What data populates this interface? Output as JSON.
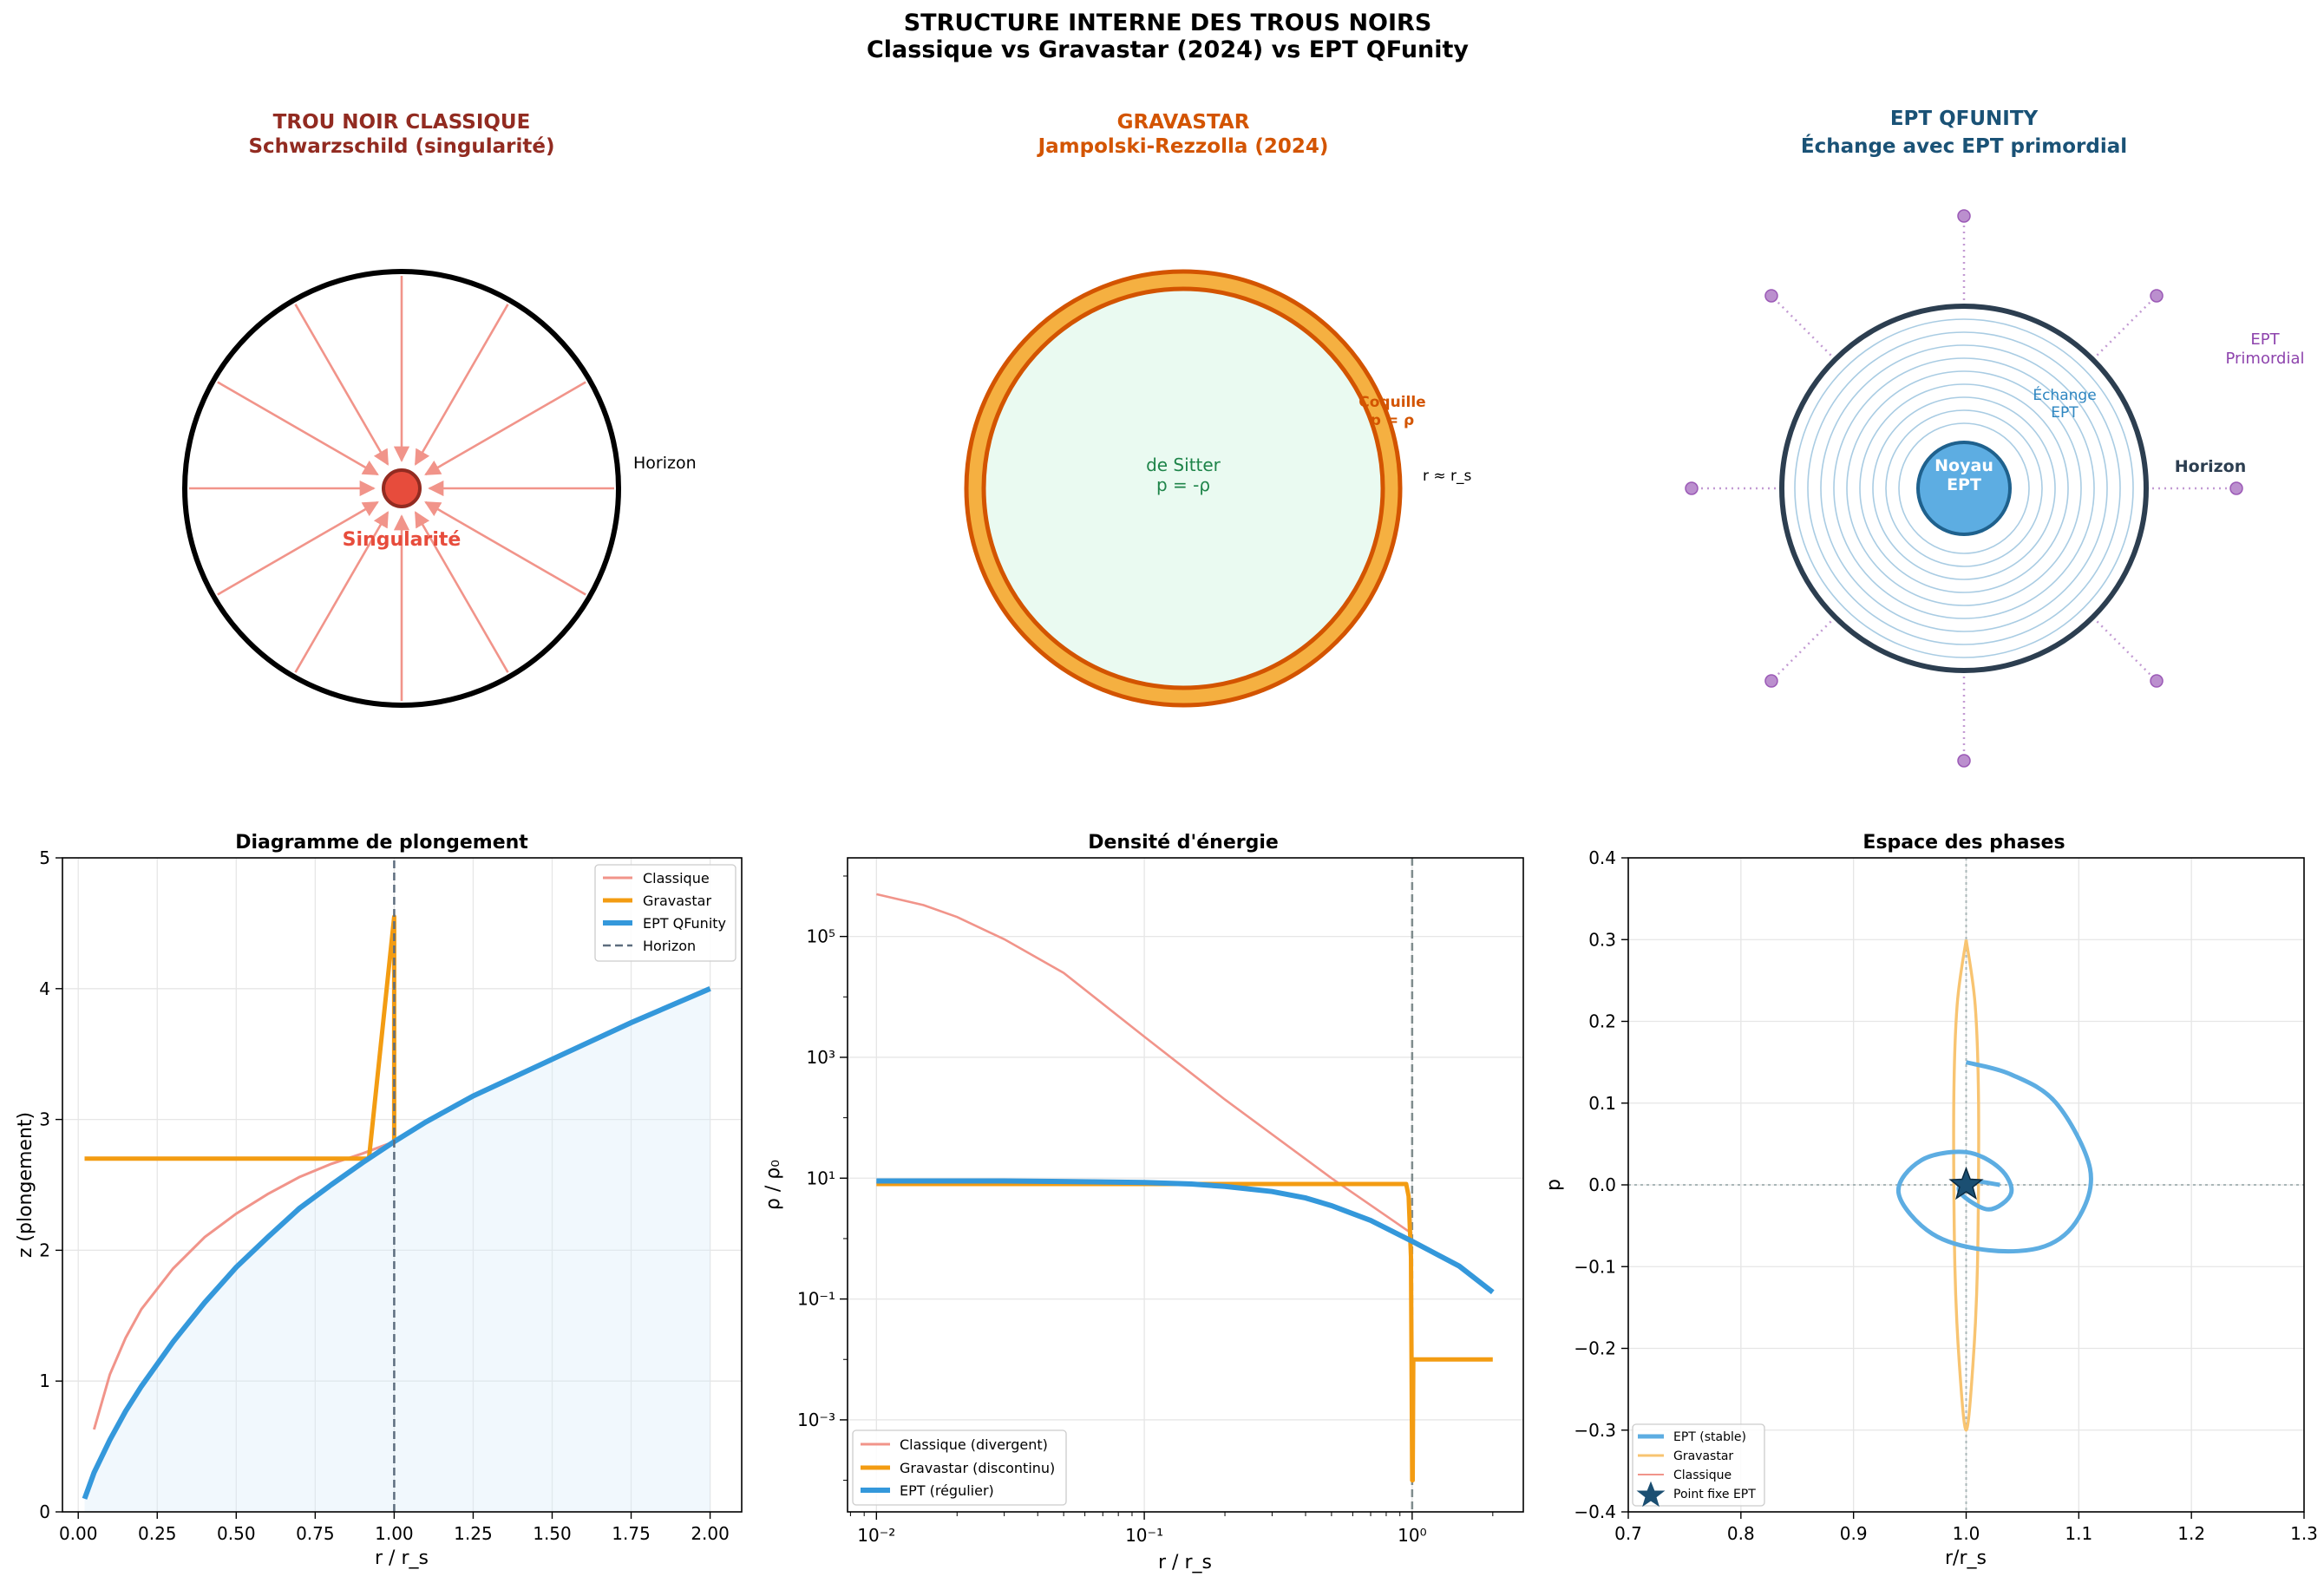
{
  "figure": {
    "title_line1": "STRUCTURE INTERNE DES TROUS NOIRS",
    "title_line2": "Classique vs Gravastar (2024) vs EPT QFunity"
  },
  "panels": {
    "classic": {
      "title_line1": "TROU NOIR CLASSIQUE",
      "title_line2": "Schwarzschild (singularité)",
      "horizon_label": "Horizon",
      "singularity_label": "Singularité",
      "color": "#922b21"
    },
    "gravastar": {
      "title_line1": "GRAVASTAR",
      "title_line2": "Jampolski-Rezzolla (2024)",
      "interior_label_line1": "de Sitter",
      "interior_label_line2": "p = -ρ",
      "shell_label_line1": "Coquille",
      "shell_label_line2": "p = ρ",
      "radius_label": "r ≈ r_s",
      "color": "#d35400"
    },
    "ept": {
      "title_line1": "EPT QFUNITY",
      "title_line2": "Échange avec EPT primordial",
      "core_label_line1": "Noyau",
      "core_label_line2": "EPT",
      "exchange_label_line1": "Échange",
      "exchange_label_line2": "EPT",
      "horizon_label": "Horizon",
      "primordial_label_line1": "EPT",
      "primordial_label_line2": "Primordial",
      "color": "#1a5276"
    }
  },
  "chart_data": [
    {
      "type": "line",
      "title": "Diagramme de plongement",
      "xlabel": "r / r_s",
      "ylabel": "z (plongement)",
      "xlim": [
        -0.05,
        2.1
      ],
      "ylim": [
        0,
        5
      ],
      "xticks": [
        "0.00",
        "0.25",
        "0.50",
        "0.75",
        "1.00",
        "1.25",
        "1.50",
        "1.75",
        "2.00"
      ],
      "yticks": [
        "0",
        "1",
        "2",
        "3",
        "4",
        "5"
      ],
      "grid": true,
      "legend_position": "upper right",
      "series": [
        {
          "name": "Classique",
          "color": "#f1948a",
          "x": [
            0.05,
            0.1,
            0.15,
            0.2,
            0.3,
            0.4,
            0.5,
            0.6,
            0.7,
            0.8,
            0.9,
            1.0
          ],
          "y": [
            0.63,
            1.05,
            1.33,
            1.55,
            1.86,
            2.1,
            2.28,
            2.43,
            2.56,
            2.66,
            2.74,
            2.83
          ]
        },
        {
          "name": "Gravastar",
          "color": "#f39c12",
          "x": [
            0.02,
            0.92,
            1.0,
            1.0,
            1.1,
            1.25,
            1.5,
            1.75,
            2.0
          ],
          "y": [
            2.7,
            2.7,
            4.55,
            2.83,
            2.98,
            3.18,
            3.46,
            3.74,
            4.0
          ]
        },
        {
          "name": "EPT QFunity",
          "color": "#3498db",
          "x": [
            0.02,
            0.05,
            0.1,
            0.15,
            0.2,
            0.3,
            0.4,
            0.5,
            0.6,
            0.7,
            0.8,
            0.9,
            1.0,
            1.1,
            1.25,
            1.5,
            1.75,
            2.0
          ],
          "y": [
            0.1,
            0.3,
            0.55,
            0.77,
            0.96,
            1.3,
            1.6,
            1.87,
            2.1,
            2.32,
            2.5,
            2.67,
            2.83,
            2.98,
            3.18,
            3.46,
            3.74,
            4.0
          ]
        },
        {
          "name": "Horizon",
          "color": "#5d6d7e",
          "x": [
            1.0,
            1.0
          ],
          "y": [
            0,
            5
          ]
        }
      ]
    },
    {
      "type": "line",
      "title": "Densité d'énergie",
      "xlabel": "r / r_s",
      "ylabel": "ρ / ρ₀",
      "xscale": "log",
      "yscale": "log",
      "xlim": [
        0.0078,
        2.6
      ],
      "ylim": [
        3e-05,
        2000000
      ],
      "xticks": [
        0.01,
        0.1,
        1
      ],
      "yticks": [
        0.001,
        0.1,
        10,
        1000,
        100000
      ],
      "xtick_labels": [
        "10⁻²",
        "10⁻¹",
        "10⁰"
      ],
      "ytick_labels": [
        "10⁻³",
        "10⁻¹",
        "10¹",
        "10³",
        "10⁵"
      ],
      "grid": true,
      "legend_position": "lower left",
      "series": [
        {
          "name": "Classique (divergent)",
          "color": "#f1948a",
          "x": [
            0.01,
            0.015,
            0.02,
            0.03,
            0.05,
            0.1,
            0.2,
            0.5,
            1.0
          ],
          "y": [
            500000,
            330000,
            210000,
            90000,
            25000,
            2200,
            200,
            10,
            1.2
          ]
        },
        {
          "name": "Gravastar (discontinu)",
          "color": "#f39c12",
          "x": [
            0.01,
            0.95,
            0.97,
            0.99,
            1.0,
            1.005,
            1.01,
            1.03,
            2.0
          ],
          "y": [
            8,
            8,
            5,
            0.5,
            0.0001,
            0.0001,
            0.01,
            0.01,
            0.01
          ]
        },
        {
          "name": "EPT (régulier)",
          "color": "#3498db",
          "x": [
            0.01,
            0.03,
            0.05,
            0.1,
            0.15,
            0.2,
            0.3,
            0.4,
            0.5,
            0.7,
            1.0,
            1.5,
            2.0
          ],
          "y": [
            9,
            9,
            8.8,
            8.5,
            8,
            7.3,
            6,
            4.7,
            3.5,
            2,
            0.9,
            0.35,
            0.13
          ]
        }
      ]
    },
    {
      "type": "line",
      "title": "Espace des phases",
      "xlabel": "r/r_s",
      "ylabel": "p",
      "xlim": [
        0.7,
        1.3
      ],
      "ylim": [
        -0.4,
        0.4
      ],
      "xticks": [
        "0.7",
        "0.8",
        "0.9",
        "1.0",
        "1.1",
        "1.2",
        "1.3"
      ],
      "yticks": [
        "−0.4",
        "−0.3",
        "−0.2",
        "−0.1",
        "0.0",
        "0.1",
        "0.2",
        "0.3",
        "0.4"
      ],
      "grid": true,
      "legend_position": "lower left",
      "series": [
        {
          "name": "EPT (stable)",
          "color": "#5dade2",
          "x": [
            1.0,
            1.04,
            1.08,
            1.11,
            1.1,
            1.07,
            1.02,
            0.97,
            0.94,
            0.96,
            1.0,
            1.03,
            1.04,
            1.02,
            0.995,
            1.0,
            1.03
          ],
          "y": [
            0.15,
            0.135,
            0.1,
            0.02,
            -0.04,
            -0.075,
            -0.08,
            -0.06,
            -0.01,
            0.03,
            0.04,
            0.02,
            -0.01,
            -0.03,
            -0.01,
            0.005,
            0.0
          ]
        },
        {
          "name": "Gravastar",
          "color": "#f8c471",
          "x": [
            1.0,
            1.008,
            1.011,
            1.01,
            1.006,
            1.0,
            0.994,
            0.99,
            0.989,
            0.992,
            1.0
          ],
          "y": [
            0.3,
            0.22,
            0.1,
            -0.1,
            -0.22,
            -0.3,
            -0.22,
            -0.1,
            0.1,
            0.22,
            0.3
          ]
        },
        {
          "name": "Classique",
          "color": "#f1948a",
          "x": [],
          "y": []
        },
        {
          "name": "Point fixe EPT",
          "color": "#1b4f72",
          "x": [
            1.0
          ],
          "y": [
            0.0
          ]
        }
      ]
    }
  ]
}
